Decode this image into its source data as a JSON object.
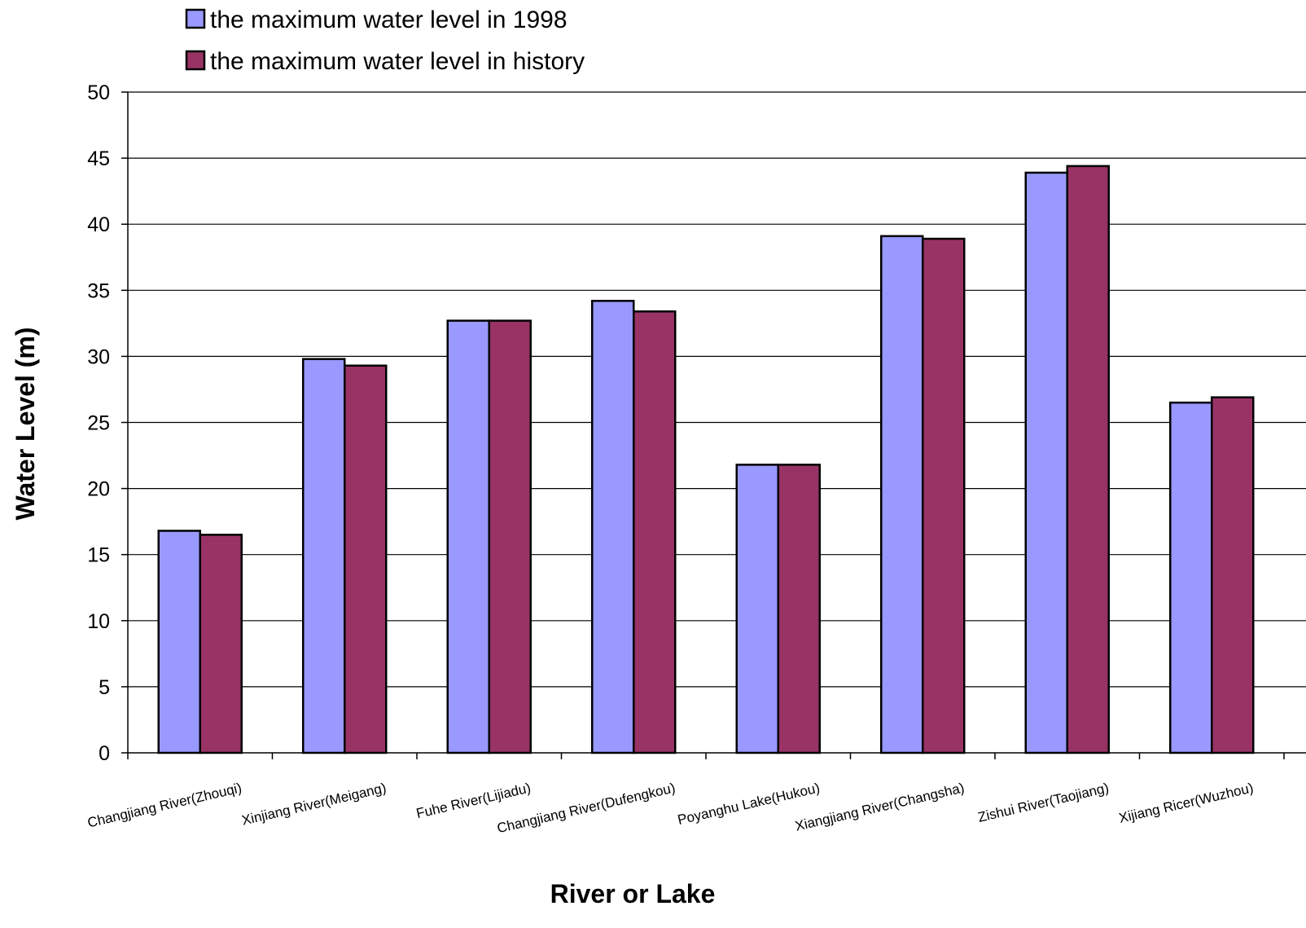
{
  "chart_data": {
    "type": "bar",
    "xlabel": "River or Lake",
    "ylabel": "Water Level (m)",
    "ylim": [
      0,
      50
    ],
    "ytick_step": 5,
    "grid": true,
    "legend_position": "top-left",
    "categories": [
      "Changjiang River(Zhouqi)",
      "Xinjiang River(Meigang)",
      "Fuhe River(Lijiadu)",
      "Changjiang River(Dufengkou)",
      "Poyanghu Lake(Hukou)",
      "Xiangjiang River(Changsha)",
      "Zishui River(Taojiang)",
      "Xijiang Ricer(Wuzhou)"
    ],
    "series": [
      {
        "name": "the maximum water level in 1998",
        "color": "#9999ff",
        "values": [
          16.8,
          29.8,
          32.7,
          34.2,
          21.8,
          39.1,
          43.9,
          26.5
        ]
      },
      {
        "name": "the maximum water level in history",
        "color": "#993366",
        "values": [
          16.5,
          29.3,
          32.7,
          33.4,
          21.8,
          38.9,
          44.4,
          26.9
        ]
      }
    ]
  }
}
